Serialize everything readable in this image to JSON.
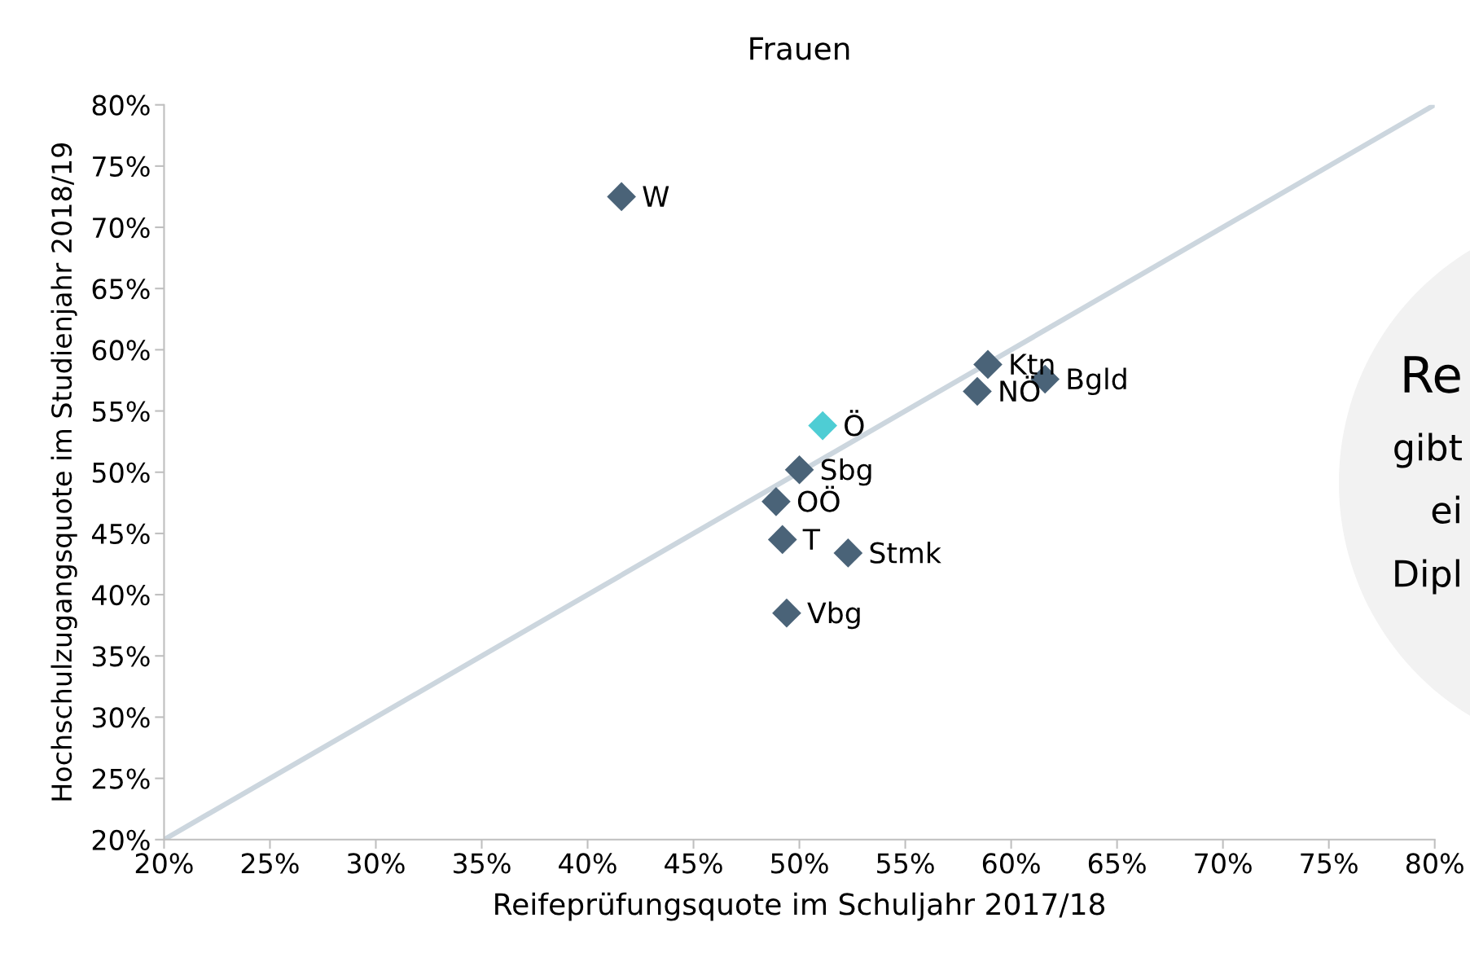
{
  "chart_data": {
    "type": "scatter",
    "title": "Frauen",
    "xlabel": "Reifeprüfungsquote im Schuljahr 2017/18",
    "ylabel": "Hochschulzugangsquote im Studienjahr 2018/19",
    "series": [
      {
        "x": [
          41.6,
          58.9,
          61.6,
          58.4,
          51.1,
          50.0,
          48.9,
          49.2,
          52.3,
          49.4
        ],
        "values": [
          72.5,
          58.8,
          57.6,
          56.6,
          53.8,
          50.2,
          47.6,
          44.5,
          43.4,
          38.5
        ],
        "colors": [
          "#4a6378",
          "#4a6378",
          "#4a6378",
          "#4a6378",
          "#4ecdd4",
          "#4a6378",
          "#4a6378",
          "#4a6378",
          "#4a6378",
          "#4a6378"
        ],
        "marker": "diamond"
      },
      {
        "type": "line",
        "x": [
          20,
          80
        ],
        "values": [
          20,
          80
        ],
        "color": "#ccd6de",
        "line_style": "solid"
      }
    ],
    "annotations": [
      {
        "text": "W",
        "x": 41.6,
        "y": 72.5
      },
      {
        "text": "Ktn",
        "x": 58.9,
        "y": 58.8
      },
      {
        "text": "Bgld",
        "x": 61.6,
        "y": 57.6
      },
      {
        "text": "NÖ",
        "x": 58.4,
        "y": 56.6
      },
      {
        "text": "Ö",
        "x": 51.1,
        "y": 53.8
      },
      {
        "text": "Sbg",
        "x": 50.0,
        "y": 50.2
      },
      {
        "text": "OÖ",
        "x": 48.9,
        "y": 47.6
      },
      {
        "text": "T",
        "x": 49.2,
        "y": 44.5
      },
      {
        "text": "Stmk",
        "x": 52.3,
        "y": 43.4
      },
      {
        "text": "Vbg",
        "x": 49.4,
        "y": 38.5
      },
      "Re",
      "gibt",
      "ei",
      "Dipl"
    ],
    "xlim": [
      20,
      80
    ],
    "ylim": [
      20,
      80
    ],
    "xticks": [
      {
        "value": 20,
        "label": "20%"
      },
      {
        "value": 25,
        "label": "25%"
      },
      {
        "value": 30,
        "label": "30%"
      },
      {
        "value": 35,
        "label": "35%"
      },
      {
        "value": 40,
        "label": "40%"
      },
      {
        "value": 45,
        "label": "45%"
      },
      {
        "value": 50,
        "label": "50%"
      },
      {
        "value": 55,
        "label": "55%"
      },
      {
        "value": 60,
        "label": "60%"
      },
      {
        "value": 65,
        "label": "65%"
      },
      {
        "value": 70,
        "label": "70%"
      },
      {
        "value": 75,
        "label": "75%"
      },
      {
        "value": 80,
        "label": "80%"
      }
    ],
    "yticks": [
      {
        "value": 20,
        "label": "20%"
      },
      {
        "value": 25,
        "label": "25%"
      },
      {
        "value": 30,
        "label": "30%"
      },
      {
        "value": 35,
        "label": "35%"
      },
      {
        "value": 40,
        "label": "40%"
      },
      {
        "value": 45,
        "label": "45%"
      },
      {
        "value": 50,
        "label": "50%"
      },
      {
        "value": 55,
        "label": "55%"
      },
      {
        "value": 60,
        "label": "60%"
      },
      {
        "value": 65,
        "label": "65%"
      },
      {
        "value": 70,
        "label": "70%"
      },
      {
        "value": 75,
        "label": "75%"
      },
      {
        "value": 80,
        "label": "80%"
      }
    ],
    "grid": false,
    "legend": false
  }
}
